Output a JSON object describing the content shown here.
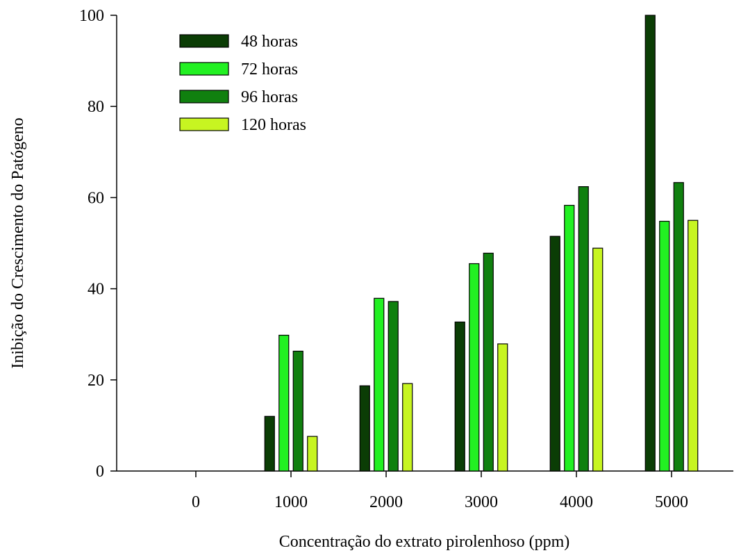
{
  "chart_data": {
    "type": "bar",
    "title": "",
    "xlabel": "Concentração do extrato pirolenhoso (ppm)",
    "ylabel": "Inibição do Crescimento do Patógeno",
    "categories": [
      "0",
      "1000",
      "2000",
      "3000",
      "4000",
      "5000"
    ],
    "ylim": [
      0,
      100
    ],
    "yticks": [
      0,
      20,
      40,
      60,
      80,
      100
    ],
    "grid": false,
    "legend_position": "top-left",
    "series": [
      {
        "name": "48 horas",
        "color": "#0b3d05",
        "values": [
          0,
          12.0,
          18.7,
          32.7,
          51.5,
          100.0
        ]
      },
      {
        "name": "72 horas",
        "color": "#22f022",
        "values": [
          0,
          29.8,
          37.9,
          45.5,
          58.3,
          54.8
        ]
      },
      {
        "name": "96 horas",
        "color": "#10800f",
        "values": [
          0,
          26.3,
          37.2,
          47.8,
          62.4,
          63.3
        ]
      },
      {
        "name": "120 horas",
        "color": "#c7f521",
        "values": [
          0,
          7.6,
          19.2,
          27.9,
          48.9,
          55.0
        ]
      }
    ]
  }
}
